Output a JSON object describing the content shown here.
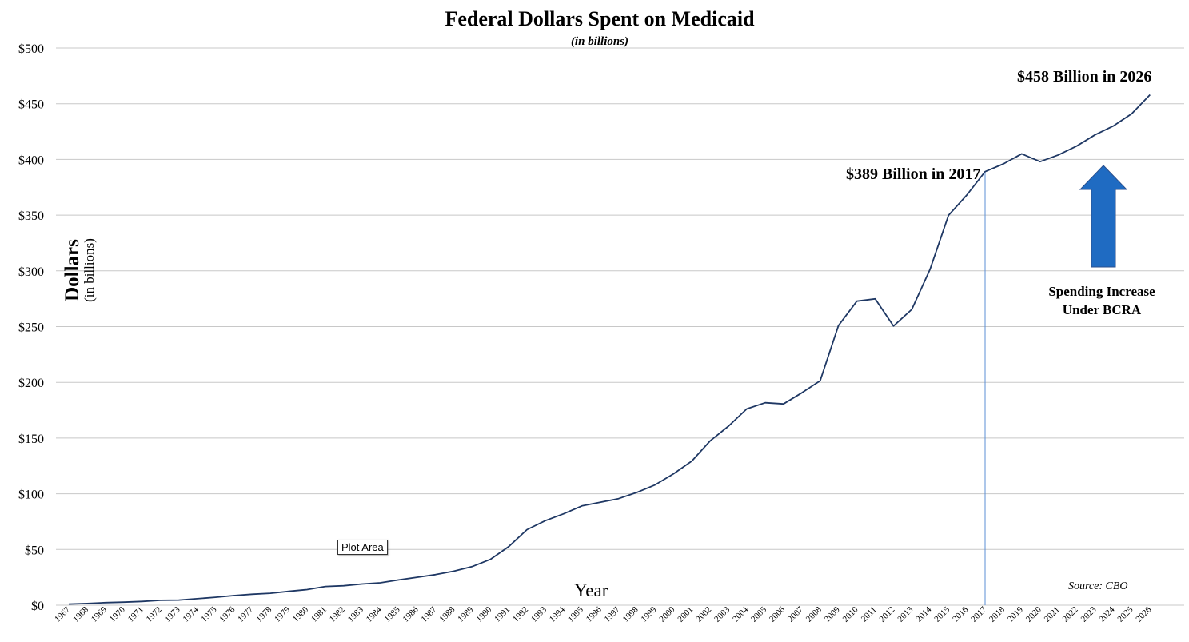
{
  "chart_data": {
    "type": "line",
    "title": "Federal Dollars Spent on Medicaid",
    "subtitle": "(in billions)",
    "xlabel": "Year",
    "ylabel": "Dollars",
    "ylabel_sub": "(in billions)",
    "ylim": [
      0,
      500
    ],
    "y_ticks": [
      "$0",
      "$50",
      "$100",
      "$150",
      "$200",
      "$250",
      "$300",
      "$350",
      "$400",
      "$450",
      "$500"
    ],
    "grid": true,
    "legend": "none",
    "line_color": "#1f3864",
    "categories": [
      "1967",
      "1968",
      "1969",
      "1970",
      "1971",
      "1972",
      "1973",
      "1974",
      "1975",
      "1976",
      "1977",
      "1978",
      "1979",
      "1980",
      "1981",
      "1982",
      "1983",
      "1984",
      "1985",
      "1986",
      "1987",
      "1988",
      "1989",
      "1990",
      "1991",
      "1992",
      "1993",
      "1994",
      "1995",
      "1996",
      "1997",
      "1998",
      "1999",
      "2000",
      "2001",
      "2002",
      "2003",
      "2004",
      "2005",
      "2006",
      "2007",
      "2008",
      "2009",
      "2010",
      "2011",
      "2012",
      "2013",
      "2014",
      "2015",
      "2016",
      "2017",
      "2018",
      "2019",
      "2020",
      "2021",
      "2022",
      "2023",
      "2024",
      "2025",
      "2026"
    ],
    "series": [
      {
        "values": [
          1,
          1.5,
          2.3,
          2.7,
          3.4,
          4.4,
          4.6,
          5.8,
          7.1,
          8.6,
          9.8,
          10.7,
          12.4,
          14,
          16.8,
          17.4,
          19,
          20.1,
          22.7,
          25,
          27.4,
          30.5,
          34.6,
          41.1,
          52.5,
          67.8,
          75.8,
          82,
          89.1,
          92.3,
          95.6,
          101.2,
          108,
          117.9,
          129.4,
          147.5,
          160.7,
          176.2,
          181.7,
          180.6,
          190.6,
          201.4,
          250.9,
          272.8,
          274.9,
          250.5,
          265.4,
          301.5,
          349.8,
          368,
          389,
          396,
          405,
          398,
          404,
          412,
          422,
          430,
          441,
          458
        ]
      }
    ],
    "annotations": [
      "$389 Billion in 2017",
      "$458 Billion in 2026"
    ],
    "arrow_label": "Spending Increase Under BCRA",
    "source": "Source: CBO",
    "arrow_color": "#1f6bc2"
  },
  "overlay": {
    "plot_area_tooltip": "Plot Area"
  }
}
